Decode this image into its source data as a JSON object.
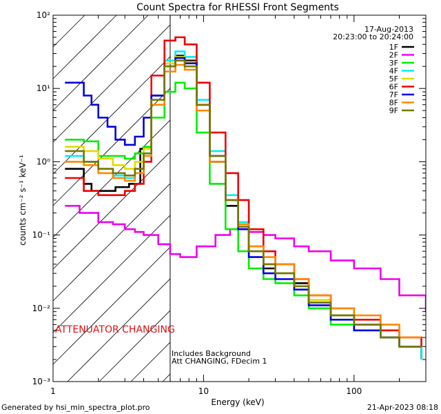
{
  "chart_data": {
    "type": "line",
    "title": "Count Spectra for RHESSI Front Segments",
    "xlabel": "Energy (keV)",
    "ylabel": "counts cm⁻² s⁻¹ keV⁻¹",
    "xscale": "log",
    "yscale": "log",
    "xlim": [
      1,
      300
    ],
    "ylim": [
      0.001,
      100
    ],
    "x_ticks": [
      {
        "value": 1,
        "label": "1"
      },
      {
        "value": 10,
        "label": "10"
      },
      {
        "value": 100,
        "label": "100"
      }
    ],
    "y_ticks": [
      {
        "value": 100,
        "label": "10²"
      },
      {
        "value": 10,
        "label": "10¹"
      },
      {
        "value": 1,
        "label": "10⁰"
      },
      {
        "value": 0.1,
        "label": "10⁻¹"
      },
      {
        "value": 0.01,
        "label": "10⁻²"
      },
      {
        "value": 0.001,
        "label": "10⁻³"
      }
    ],
    "date": "17-Aug-2013",
    "time_range": "20:23:00 to 20:24:00",
    "attenuator_text": "ATTENUATOR CHANGING",
    "attenuator_color": "#dd1111",
    "threshold_energy": 6,
    "notes": [
      "Includes Background",
      "Att CHANGING, FDecim 1"
    ],
    "series": [
      {
        "name": "1F",
        "color": "#000000",
        "x": [
          1.2,
          1.6,
          1.8,
          2.2,
          2.6,
          3.2,
          3.8,
          4.5,
          5.5,
          6.5,
          7.5,
          9,
          11,
          14,
          17,
          20,
          25,
          30,
          40,
          50,
          70,
          100,
          150,
          200,
          280
        ],
        "y": [
          0.8,
          0.5,
          0.4,
          0.4,
          0.45,
          0.5,
          1.5,
          8,
          22,
          28,
          24,
          6,
          1.0,
          0.25,
          0.12,
          0.06,
          0.035,
          0.03,
          0.022,
          0.012,
          0.008,
          0.006,
          0.004,
          0.003,
          0.002
        ]
      },
      {
        "name": "2F",
        "color": "#ee00ee",
        "x": [
          1.2,
          1.5,
          2,
          2.5,
          3,
          3.5,
          4,
          5,
          6,
          7,
          9,
          12,
          15,
          20,
          25,
          30,
          40,
          50,
          70,
          100,
          150,
          200,
          300
        ],
        "y": [
          0.25,
          0.2,
          0.15,
          0.14,
          0.12,
          0.11,
          0.1,
          0.075,
          0.055,
          0.05,
          0.07,
          0.1,
          0.12,
          0.11,
          0.1,
          0.09,
          0.07,
          0.06,
          0.045,
          0.035,
          0.025,
          0.015,
          0.009
        ]
      },
      {
        "name": "3F",
        "color": "#00ee00",
        "x": [
          1.2,
          1.6,
          2,
          2.5,
          3,
          3.5,
          4,
          4.5,
          5.5,
          6.5,
          7.5,
          9,
          11,
          14,
          17,
          20,
          25,
          30,
          40,
          50,
          70,
          100,
          150,
          200,
          280
        ],
        "y": [
          2.0,
          1.9,
          1.2,
          1.2,
          1.1,
          1.3,
          1.6,
          4,
          9,
          12,
          10,
          2.5,
          0.5,
          0.12,
          0.06,
          0.035,
          0.025,
          0.022,
          0.015,
          0.01,
          0.006,
          0.005,
          0.004,
          0.003,
          0.003
        ]
      },
      {
        "name": "4F",
        "color": "#00eeee",
        "x": [
          1.2,
          1.6,
          2,
          2.5,
          3,
          3.5,
          4,
          4.5,
          5.5,
          6.5,
          7.5,
          9,
          11,
          14,
          17,
          20,
          25,
          30,
          40,
          50,
          70,
          100,
          150,
          200,
          280
        ],
        "y": [
          1.2,
          1.0,
          0.8,
          0.65,
          0.6,
          0.7,
          1.2,
          6,
          24,
          32,
          27,
          7,
          1.4,
          0.35,
          0.15,
          0.07,
          0.04,
          0.03,
          0.02,
          0.012,
          0.008,
          0.006,
          0.004,
          0.003,
          0.002
        ]
      },
      {
        "name": "5F",
        "color": "#dddd00",
        "x": [
          1.2,
          1.6,
          2,
          2.5,
          3,
          3.5,
          4,
          4.5,
          5.5,
          6.5,
          7.5,
          9,
          11,
          14,
          17,
          20,
          25,
          30,
          40,
          50,
          70,
          100,
          150,
          200,
          280
        ],
        "y": [
          1.6,
          1.4,
          1.1,
          0.9,
          0.8,
          1.0,
          1.5,
          6,
          22,
          27,
          23,
          6,
          1.2,
          0.3,
          0.14,
          0.07,
          0.04,
          0.03,
          0.02,
          0.013,
          0.008,
          0.006,
          0.004,
          0.003,
          0.003
        ]
      },
      {
        "name": "6F",
        "color": "#ee0000",
        "x": [
          1.2,
          1.6,
          2,
          2.5,
          3,
          3.5,
          4,
          4.5,
          5.5,
          6.5,
          7.5,
          9,
          11,
          14,
          17,
          20,
          25,
          30,
          40,
          50,
          70,
          100,
          150,
          200,
          280
        ],
        "y": [
          0.6,
          0.4,
          0.35,
          0.35,
          0.4,
          0.5,
          1.0,
          15,
          45,
          50,
          40,
          12,
          2.5,
          0.7,
          0.3,
          0.12,
          0.06,
          0.04,
          0.025,
          0.015,
          0.01,
          0.007,
          0.005,
          0.004,
          0.003
        ]
      },
      {
        "name": "7F",
        "color": "#0000dd",
        "x": [
          1.2,
          1.4,
          1.6,
          1.8,
          2,
          2.3,
          2.6,
          3,
          3.5,
          4,
          4.5,
          5.5,
          6.5,
          7.5,
          9,
          11,
          14,
          17,
          20,
          25,
          30,
          40,
          50,
          70,
          100,
          150,
          200,
          280
        ],
        "y": [
          12,
          12,
          8,
          6,
          4,
          3,
          2,
          1.7,
          2.2,
          4,
          8,
          20,
          26,
          22,
          6,
          1.2,
          0.3,
          0.12,
          0.05,
          0.03,
          0.025,
          0.018,
          0.011,
          0.007,
          0.005,
          0.004,
          0.003,
          0.003
        ]
      },
      {
        "name": "8F",
        "color": "#ff8800",
        "x": [
          1.2,
          1.6,
          2,
          2.5,
          3,
          3.5,
          4,
          4.5,
          5.5,
          6.5,
          7.5,
          9,
          11,
          14,
          17,
          20,
          25,
          30,
          40,
          50,
          70,
          100,
          150,
          200,
          280
        ],
        "y": [
          1.0,
          0.9,
          0.7,
          0.6,
          0.55,
          0.7,
          1.2,
          6,
          17,
          21,
          18,
          5,
          1.0,
          0.3,
          0.14,
          0.07,
          0.05,
          0.04,
          0.025,
          0.015,
          0.01,
          0.008,
          0.006,
          0.004,
          0.004
        ]
      },
      {
        "name": "9F",
        "color": "#777700",
        "x": [
          1.2,
          1.6,
          2,
          2.5,
          3,
          3.5,
          4,
          4.5,
          5.5,
          6.5,
          7.5,
          9,
          11,
          14,
          17,
          20,
          25,
          30,
          40,
          50,
          70,
          100,
          150,
          200,
          280
        ],
        "y": [
          1.4,
          1.0,
          0.8,
          0.7,
          0.65,
          0.8,
          1.3,
          7,
          20,
          24,
          20,
          6,
          1.2,
          0.3,
          0.13,
          0.06,
          0.04,
          0.03,
          0.02,
          0.012,
          0.008,
          0.006,
          0.004,
          0.003,
          0.003
        ]
      }
    ]
  },
  "footer": {
    "generator": "Generated by hsi_min_spectra_plot.pro",
    "timestamp": "21-Apr-2023 08:18"
  }
}
